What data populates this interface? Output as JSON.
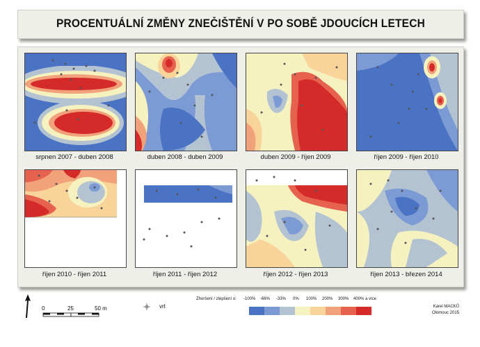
{
  "title": "PROCENTUÁLNÍ ZMĚNY ZNEČIŠTĚNÍ V PO SOBĚ JDOUCÍCH LETECH",
  "panels": [
    {
      "label": "srpnen 2007 - duben 2008"
    },
    {
      "label": "duben 2008 - duben 2009"
    },
    {
      "label": "duben 2009 - říjen 2009"
    },
    {
      "label": "říjen 2009 - říjen 2010"
    },
    {
      "label": "říjen 2010 - říjen 2011"
    },
    {
      "label": "říjen 2011 - říjen 2012"
    },
    {
      "label": "říjen 2012 - říjen 2013"
    },
    {
      "label": "říjen 2013 - březen 2014"
    }
  ],
  "scale": {
    "ticks": [
      "0",
      "25",
      "50 m"
    ]
  },
  "well_label": "vrt",
  "legend": {
    "title": "Zhoršení / zlepšení o:",
    "values": [
      "-100%",
      "-66%",
      "-33%",
      "0%",
      "100%",
      "200%",
      "300%",
      "400% a více"
    ],
    "colors": [
      "#4a73c4",
      "#7c9bd4",
      "#b4c3d2",
      "#f6f2c0",
      "#f8d49a",
      "#f2a27a",
      "#e6624e",
      "#d42a2a"
    ]
  },
  "author": "Karel MACKŮ",
  "place_year": "Olomouc 2015"
}
